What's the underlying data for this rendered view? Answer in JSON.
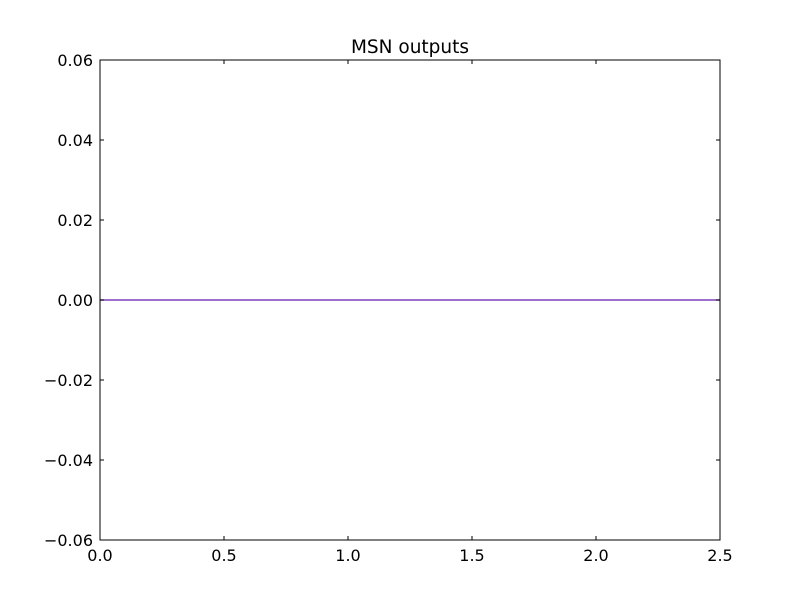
{
  "chart_data": {
    "type": "line",
    "title": "MSN outputs",
    "xlabel": "",
    "ylabel": "",
    "xlim": [
      0.0,
      2.5
    ],
    "ylim": [
      -0.06,
      0.06
    ],
    "x_ticks": [
      0.0,
      0.5,
      1.0,
      1.5,
      2.0,
      2.5
    ],
    "x_tick_labels": [
      "0.0",
      "0.5",
      "1.0",
      "1.5",
      "2.0",
      "2.5"
    ],
    "y_ticks": [
      -0.06,
      -0.04,
      -0.02,
      0.0,
      0.02,
      0.04,
      0.06
    ],
    "y_tick_labels": [
      "−0.06",
      "−0.04",
      "−0.02",
      "0.00",
      "0.02",
      "0.04",
      "0.06"
    ],
    "grid": false,
    "series": [
      {
        "color": "#7f3fbf",
        "x": [
          0.0,
          0.5,
          1.0,
          1.5,
          2.0,
          2.5
        ],
        "y": [
          0.0,
          0.0,
          0.0,
          0.0,
          0.0,
          0.0
        ]
      }
    ]
  }
}
